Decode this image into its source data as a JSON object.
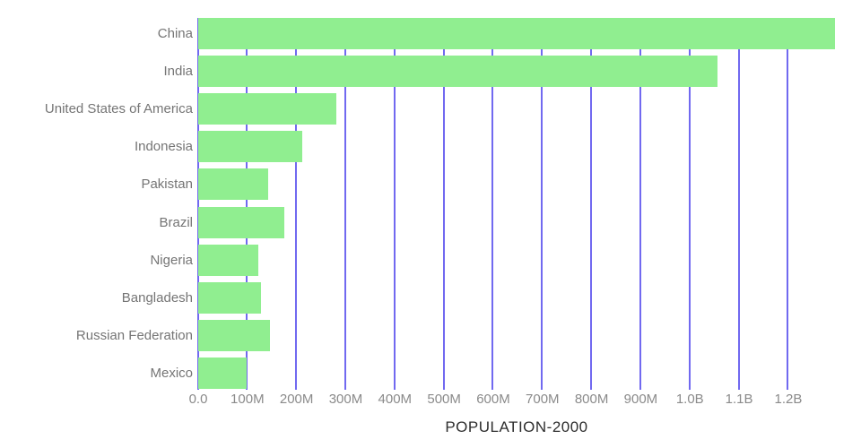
{
  "chart_data": {
    "type": "bar",
    "orientation": "horizontal",
    "title": "POPULATION-2000",
    "xlabel": "",
    "ylabel": "",
    "grid": "vertical-gridlines",
    "legend": "none",
    "categories": [
      "China",
      "India",
      "United States of America",
      "Indonesia",
      "Pakistan",
      "Brazil",
      "Nigeria",
      "Bangladesh",
      "Russian Federation",
      "Mexico"
    ],
    "values_millions": [
      1295,
      1056,
      281,
      211,
      142,
      175,
      122,
      128,
      146,
      99
    ],
    "x_tick_labels": [
      "0.0",
      "100M",
      "200M",
      "300M",
      "400M",
      "500M",
      "600M",
      "700M",
      "800M",
      "900M",
      "1.0B",
      "1.1B",
      "1.2B"
    ],
    "x_tick_values_millions": [
      0,
      100,
      200,
      300,
      400,
      500,
      600,
      700,
      800,
      900,
      1000,
      1100,
      1200
    ],
    "x_axis_max_millions": 1295,
    "colors": {
      "bar": "#90EE90",
      "gridline": "#7169F0",
      "category_label": "#757575",
      "tick_label": "#8A8A8A",
      "title": "#2E2E2E",
      "background": "#FFFFFF"
    }
  }
}
